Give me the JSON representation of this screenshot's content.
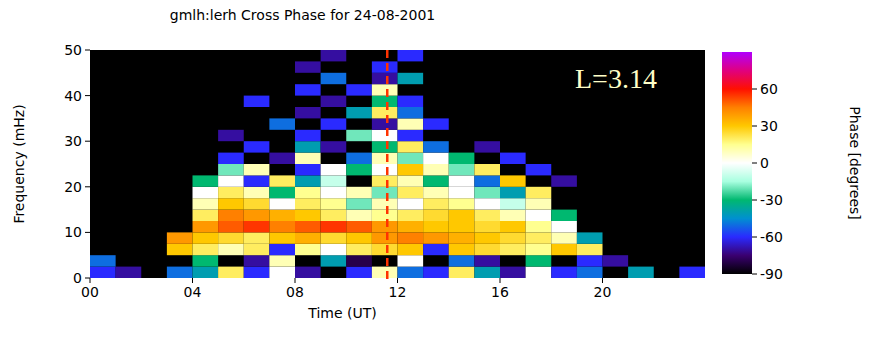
{
  "chart_data": {
    "type": "heatmap",
    "title": "gmlh:lerh Cross Phase for 24-08-2001",
    "x_label": "Time (UT)",
    "y_label": "Frequency (mHz)",
    "xlim": [
      0,
      24
    ],
    "xticks": [
      {
        "value": 0,
        "label": "00"
      },
      {
        "value": 4,
        "label": "04"
      },
      {
        "value": 8,
        "label": "08"
      },
      12,
      16,
      20
    ],
    "ylim": [
      0,
      50
    ],
    "yticks": [
      0,
      10,
      20,
      30,
      40,
      50
    ],
    "x": [
      0,
      1,
      2,
      3,
      4,
      5,
      6,
      7,
      8,
      9,
      10,
      11,
      12,
      13,
      14,
      15,
      16,
      17,
      18,
      19,
      20,
      21,
      22,
      23
    ],
    "y": [
      0,
      2.5,
      5,
      7.5,
      10,
      12.5,
      15,
      17.5,
      20,
      22.5,
      25,
      27.5,
      30,
      32.5,
      35,
      37.5,
      40,
      42.5,
      45,
      47.5
    ],
    "z": [
      [
        -60,
        -70,
        null,
        -50,
        -40,
        20,
        -60,
        0,
        -70,
        null,
        -60,
        10,
        -50,
        -60,
        20,
        -40,
        -70,
        0,
        -60,
        -50,
        null,
        -40,
        null,
        -60
      ],
      [
        -50,
        null,
        null,
        null,
        -30,
        null,
        -70,
        10,
        null,
        -40,
        -80,
        null,
        0,
        null,
        -50,
        -70,
        null,
        -30,
        null,
        -60,
        -70,
        null,
        null,
        null
      ],
      [
        null,
        null,
        null,
        30,
        20,
        10,
        20,
        -60,
        15,
        0,
        20,
        25,
        30,
        -60,
        30,
        25,
        20,
        15,
        30,
        20,
        null,
        null,
        null,
        null
      ],
      [
        null,
        null,
        null,
        40,
        30,
        25,
        20,
        30,
        35,
        25,
        30,
        40,
        45,
        40,
        35,
        30,
        25,
        20,
        10,
        -40,
        null,
        null,
        null,
        null
      ],
      [
        null,
        null,
        null,
        null,
        40,
        50,
        55,
        45,
        50,
        55,
        50,
        40,
        35,
        30,
        30,
        25,
        30,
        15,
        0,
        null,
        null,
        null,
        null,
        null
      ],
      [
        null,
        null,
        null,
        null,
        20,
        45,
        40,
        35,
        30,
        20,
        10,
        15,
        20,
        25,
        30,
        20,
        10,
        0,
        -30,
        null,
        null,
        null,
        null,
        null
      ],
      [
        null,
        null,
        null,
        null,
        10,
        30,
        25,
        0,
        20,
        15,
        -20,
        10,
        0,
        20,
        15,
        0,
        -10,
        10,
        null,
        null,
        null,
        null,
        null,
        null
      ],
      [
        null,
        null,
        null,
        null,
        0,
        20,
        10,
        -30,
        15,
        0,
        10,
        -20,
        20,
        10,
        0,
        -20,
        -40,
        20,
        null,
        null,
        null,
        null,
        null,
        null
      ],
      [
        null,
        null,
        null,
        null,
        -30,
        0,
        -60,
        20,
        -40,
        -10,
        null,
        20,
        10,
        -30,
        0,
        -50,
        30,
        null,
        -70,
        null,
        null,
        null,
        null,
        null
      ],
      [
        null,
        null,
        null,
        null,
        null,
        -20,
        10,
        null,
        -60,
        0,
        -30,
        0,
        30,
        10,
        -20,
        20,
        null,
        -60,
        null,
        null,
        null,
        null,
        null,
        null
      ],
      [
        null,
        null,
        null,
        null,
        null,
        -60,
        null,
        -70,
        10,
        null,
        -50,
        10,
        -20,
        0,
        -30,
        null,
        -60,
        null,
        null,
        null,
        null,
        null,
        null,
        null
      ],
      [
        null,
        null,
        null,
        null,
        null,
        null,
        -60,
        null,
        -40,
        -70,
        null,
        -30,
        20,
        -50,
        null,
        -70,
        null,
        null,
        null,
        null,
        null,
        null,
        null,
        null
      ],
      [
        null,
        null,
        null,
        null,
        null,
        -70,
        null,
        null,
        -60,
        null,
        -20,
        0,
        -60,
        null,
        null,
        null,
        null,
        null,
        null,
        null,
        null,
        null,
        null,
        null
      ],
      [
        null,
        null,
        null,
        null,
        null,
        null,
        null,
        -50,
        null,
        -60,
        null,
        -70,
        10,
        -60,
        null,
        null,
        null,
        null,
        null,
        null,
        null,
        null,
        null,
        null
      ],
      [
        null,
        null,
        null,
        null,
        null,
        null,
        null,
        null,
        -70,
        null,
        -40,
        20,
        -50,
        null,
        null,
        null,
        null,
        null,
        null,
        null,
        null,
        null,
        null,
        null
      ],
      [
        null,
        null,
        null,
        null,
        null,
        null,
        -60,
        null,
        null,
        -70,
        null,
        -30,
        -60,
        null,
        null,
        null,
        null,
        null,
        null,
        null,
        null,
        null,
        null,
        null
      ],
      [
        null,
        null,
        null,
        null,
        null,
        null,
        null,
        null,
        -60,
        null,
        -60,
        10,
        null,
        null,
        null,
        null,
        null,
        null,
        null,
        null,
        null,
        null,
        null,
        null
      ],
      [
        null,
        null,
        null,
        null,
        null,
        null,
        null,
        null,
        null,
        -50,
        null,
        -70,
        -40,
        null,
        null,
        null,
        null,
        null,
        null,
        null,
        null,
        null,
        null,
        null
      ],
      [
        null,
        null,
        null,
        null,
        null,
        null,
        null,
        null,
        -70,
        null,
        null,
        -60,
        null,
        null,
        null,
        null,
        null,
        null,
        null,
        null,
        null,
        null,
        null,
        null
      ],
      [
        null,
        null,
        null,
        null,
        null,
        null,
        null,
        null,
        null,
        -70,
        null,
        null,
        -60,
        null,
        null,
        null,
        null,
        null,
        null,
        null,
        null,
        null,
        null,
        null
      ]
    ],
    "colorbar": {
      "label": "Phase [degrees]",
      "range": [
        -90,
        90
      ],
      "ticks": [
        60,
        30,
        0,
        -30,
        -60,
        -90
      ],
      "colors": [
        "#000000",
        "#3a0070",
        "#2a2aff",
        "#0090d0",
        "#00b870",
        "#a8ffe0",
        "#ffffff",
        "#ffff90",
        "#ffc800",
        "#ff8000",
        "#ff1000",
        "#e00080",
        "#b000ff"
      ]
    },
    "annotations": [
      {
        "text": "L=3.14",
        "color": "#ffffc8"
      }
    ],
    "reference_lines": [
      {
        "x": 11.6,
        "color": "#ff3300",
        "line_style": "dashed"
      }
    ]
  }
}
